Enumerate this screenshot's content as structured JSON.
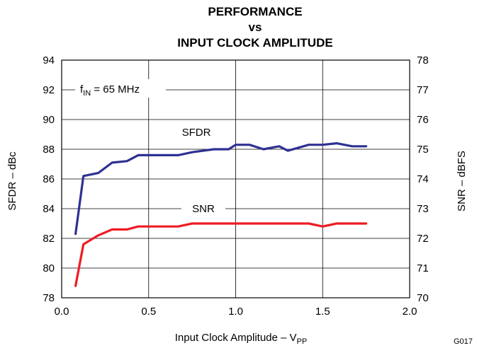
{
  "chart_data": {
    "type": "line",
    "title_lines": [
      "PERFORMANCE",
      "vs",
      "INPUT CLOCK AMPLITUDE"
    ],
    "xlabel": "Input Clock Amplitude – V",
    "xlabel_sub": "PP",
    "ylabel_left": "SFDR – dBc",
    "ylabel_right": "SNR – dBFS",
    "xlim": [
      0,
      2.0
    ],
    "ylim_left": [
      78,
      94
    ],
    "ylim_right": [
      70,
      78
    ],
    "x_ticks": [
      "0.0",
      "0.5",
      "1.0",
      "1.5",
      "2.0"
    ],
    "y_left_ticks": [
      "78",
      "80",
      "82",
      "84",
      "86",
      "88",
      "90",
      "92",
      "94"
    ],
    "y_right_ticks": [
      "70",
      "71",
      "72",
      "73",
      "74",
      "75",
      "76",
      "77",
      "78"
    ],
    "grid": true,
    "annotation": {
      "text_main": "f",
      "text_sub": "IN",
      "text_rest": " = 65 MHz"
    },
    "figure_code": "G017",
    "series": [
      {
        "name": "SFDR",
        "axis": "left",
        "color": "#2e3192",
        "x": [
          0.08,
          0.125,
          0.21,
          0.29,
          0.375,
          0.44,
          0.54,
          0.67,
          0.75,
          0.875,
          0.96,
          1.0,
          1.08,
          1.16,
          1.25,
          1.3,
          1.42,
          1.5,
          1.58,
          1.67,
          1.75
        ],
        "y": [
          82.3,
          86.2,
          86.4,
          87.1,
          87.2,
          87.6,
          87.6,
          87.6,
          87.8,
          88.0,
          88.0,
          88.3,
          88.3,
          88.0,
          88.2,
          87.9,
          88.3,
          88.3,
          88.4,
          88.2,
          88.2
        ]
      },
      {
        "name": "SNR",
        "axis": "right",
        "color": "#ed1c24",
        "x": [
          0.08,
          0.125,
          0.21,
          0.29,
          0.375,
          0.44,
          0.54,
          0.67,
          0.75,
          0.875,
          0.96,
          1.0,
          1.08,
          1.16,
          1.25,
          1.3,
          1.42,
          1.5,
          1.58,
          1.67,
          1.75
        ],
        "y": [
          70.4,
          71.8,
          72.1,
          72.3,
          72.3,
          72.4,
          72.4,
          72.4,
          72.5,
          72.5,
          72.5,
          72.5,
          72.5,
          72.5,
          72.5,
          72.5,
          72.5,
          72.4,
          72.5,
          72.5,
          72.5
        ]
      }
    ]
  }
}
